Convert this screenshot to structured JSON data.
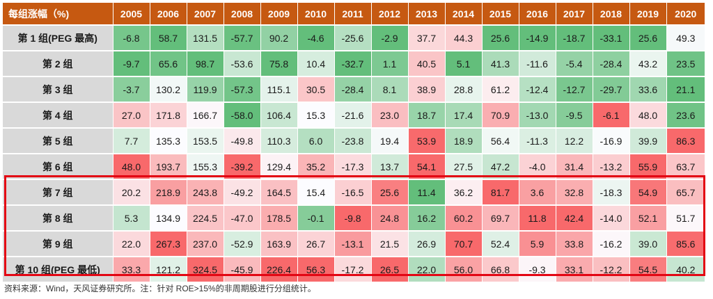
{
  "chart_data": {
    "type": "table",
    "corner_label": "每组涨幅（%)",
    "columns": [
      "2005",
      "2006",
      "2007",
      "2008",
      "2009",
      "2010",
      "2011",
      "2012",
      "2013",
      "2014",
      "2015",
      "2016",
      "2017",
      "2018",
      "2019",
      "2020"
    ],
    "rows": [
      {
        "label": "第 1 组(PEG 最高)",
        "values": [
          -6.8,
          58.7,
          131.5,
          -57.7,
          90.2,
          -4.6,
          -25.6,
          -2.9,
          37.7,
          44.3,
          25.6,
          -14.9,
          -18.7,
          -33.1,
          25.6,
          49.3
        ]
      },
      {
        "label": "第 2 组",
        "values": [
          -9.7,
          65.6,
          98.7,
          -53.6,
          75.8,
          10.4,
          -32.7,
          1.1,
          40.5,
          5.1,
          41.3,
          -11.6,
          -5.4,
          -28.4,
          43.2,
          23.5
        ]
      },
      {
        "label": "第 3 组",
        "values": [
          -3.7,
          130.2,
          119.9,
          -57.3,
          115.1,
          30.5,
          -28.4,
          8.1,
          38.9,
          28.8,
          61.2,
          -12.4,
          -12.7,
          -29.7,
          33.6,
          21.1
        ]
      },
      {
        "label": "第 4 组",
        "values": [
          27.0,
          171.8,
          166.7,
          -58.0,
          106.4,
          15.3,
          -21.6,
          23.0,
          18.7,
          17.4,
          70.9,
          -13.0,
          -9.5,
          -6.1,
          48.0,
          23.6
        ]
      },
      {
        "label": "第 5 组",
        "values": [
          7.7,
          135.3,
          153.5,
          -49.8,
          110.3,
          6.0,
          -23.8,
          19.4,
          53.9,
          18.9,
          56.4,
          -11.3,
          12.2,
          -16.9,
          39.9,
          86.3
        ]
      },
      {
        "label": "第 6 组",
        "values": [
          48.0,
          193.7,
          155.3,
          -39.2,
          129.4,
          35.2,
          -17.3,
          13.7,
          54.1,
          27.5,
          47.2,
          -4.0,
          31.4,
          -13.2,
          55.9,
          63.7
        ]
      },
      {
        "label": "第 7 组",
        "values": [
          20.2,
          218.9,
          243.8,
          -49.2,
          164.5,
          15.4,
          -16.5,
          25.6,
          11.4,
          36.2,
          81.7,
          3.6,
          32.8,
          -18.3,
          54.9,
          65.7
        ]
      },
      {
        "label": "第 8 组",
        "values": [
          5.3,
          134.9,
          224.5,
          -47.0,
          178.5,
          -0.1,
          -9.8,
          24.8,
          16.2,
          60.2,
          69.7,
          11.8,
          42.4,
          -14.0,
          52.1,
          51.7
        ]
      },
      {
        "label": "第 9 组",
        "values": [
          22.0,
          267.3,
          237.0,
          -52.9,
          163.9,
          26.7,
          -13.1,
          21.5,
          26.9,
          70.7,
          52.4,
          5.9,
          33.8,
          -16.2,
          39.0,
          85.6
        ]
      },
      {
        "label": "第 10 组(PEG 最低)",
        "values": [
          33.3,
          121.2,
          324.5,
          -45.9,
          226.4,
          56.3,
          -17.2,
          26.5,
          22.0,
          56.0,
          66.8,
          -9.3,
          33.1,
          -12.2,
          54.5,
          40.2
        ]
      }
    ],
    "colors": {
      "header_bg": "#c65911",
      "row_label_bg": "#d9d9d9",
      "scale_low": "#63be7b",
      "scale_mid": "#fcfcff",
      "scale_high": "#f8696b",
      "highlight_border": "#e30613"
    }
  },
  "source_note": "资料来源：Wind，天风证券研究所。注：针对 ROE>15%的非周期股进行分组统计。"
}
